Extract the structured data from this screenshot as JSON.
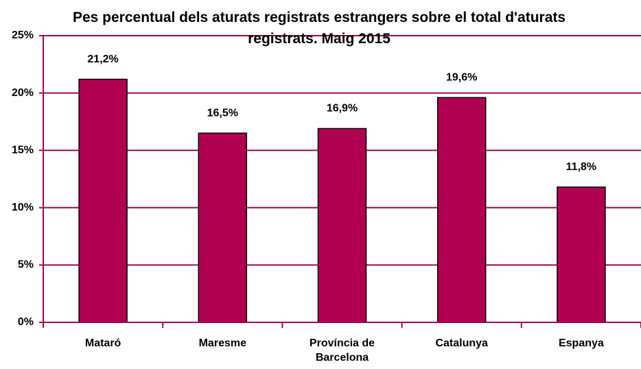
{
  "chart_data": {
    "type": "bar",
    "title": "Pes percentual dels aturats registrats estrangers sobre el total d'aturats registrats. Maig 2015",
    "categories": [
      "Mataró",
      "Maresme",
      "Província de Barcelona",
      "Catalunya",
      "Espanya"
    ],
    "values": [
      21.2,
      16.5,
      16.9,
      19.6,
      11.8
    ],
    "value_labels": [
      "21,2%",
      "16,5%",
      "16,9%",
      "19,6%",
      "11,8%"
    ],
    "color": "#b0004f",
    "grid_color": "#9b0b4a",
    "ylim": [
      0,
      25
    ],
    "yticks": [
      {
        "value": 0,
        "label": "0%"
      },
      {
        "value": 5,
        "label": "5%"
      },
      {
        "value": 10,
        "label": "10%"
      },
      {
        "value": 15,
        "label": "15%"
      },
      {
        "value": 20,
        "label": "20%"
      },
      {
        "value": 25,
        "label": "25%"
      }
    ],
    "grid": true
  }
}
